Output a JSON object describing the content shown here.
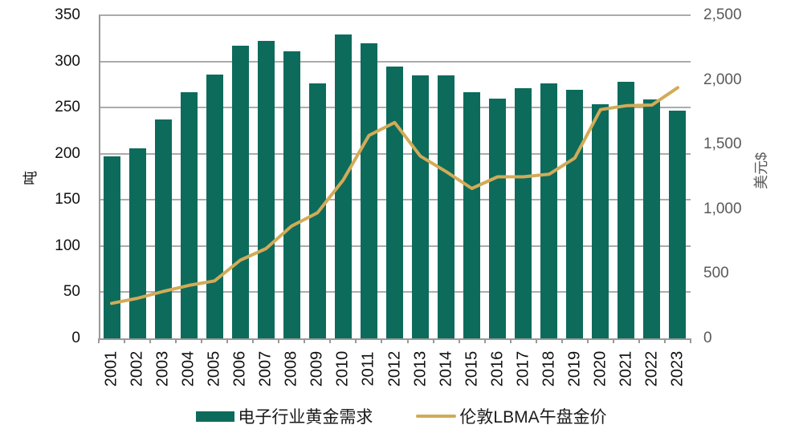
{
  "chart_data": {
    "type": "bar+line combo",
    "title": "",
    "categories": [
      "2001",
      "2002",
      "2003",
      "2004",
      "2005",
      "2006",
      "2007",
      "2008",
      "2009",
      "2010",
      "2011",
      "2012",
      "2013",
      "2014",
      "2015",
      "2016",
      "2017",
      "2018",
      "2019",
      "2020",
      "2021",
      "2022",
      "2023"
    ],
    "series": [
      {
        "name": "电子行业黄金需求",
        "type": "bar",
        "axis": "left",
        "color": "#0d6b5c",
        "values": [
          197,
          206,
          237,
          267,
          286,
          317,
          322,
          311,
          276,
          329,
          320,
          294,
          285,
          285,
          267,
          260,
          271,
          276,
          269,
          254,
          278,
          259,
          247
        ]
      },
      {
        "name": "伦敦LBMA午盘金价",
        "type": "line",
        "axis": "right",
        "color": "#d2ab57",
        "values": [
          271,
          310,
          363,
          410,
          445,
          605,
          695,
          870,
          972,
          1225,
          1570,
          1670,
          1410,
          1290,
          1160,
          1250,
          1250,
          1270,
          1395,
          1770,
          1800,
          1805,
          1940
        ]
      }
    ],
    "left_axis": {
      "title": "吨",
      "min": 0,
      "max": 350,
      "step": 50,
      "tick_labels": [
        "0",
        "50",
        "100",
        "150",
        "200",
        "250",
        "300",
        "350"
      ]
    },
    "right_axis": {
      "title": "美元$",
      "min": 0,
      "max": 2500,
      "step": 500,
      "tick_labels": [
        "0",
        "500",
        "1,000",
        "1,500",
        "2,000",
        "2,500"
      ]
    },
    "grid": true,
    "legend_position": "bottom"
  },
  "colors": {
    "bar": "#0d6b5c",
    "line": "#d2ab57",
    "grid": "#ababab",
    "axis_line": "#999999",
    "left_text": "#111111",
    "right_text": "#595959",
    "background": "#ffffff"
  }
}
